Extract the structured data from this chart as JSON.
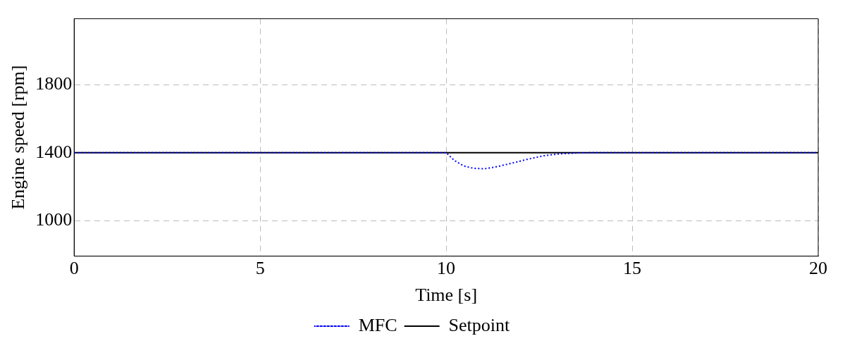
{
  "chart_data": {
    "type": "line",
    "xlabel": "Time [s]",
    "ylabel": "Engine speed [rpm]",
    "xlim": [
      0,
      20
    ],
    "xticks": [
      0,
      5,
      10,
      15,
      20
    ],
    "ylim": [
      790,
      2190
    ],
    "yticks": [
      1000,
      1400,
      1800
    ],
    "grid": true,
    "legend": "bottom",
    "series": [
      {
        "name": "MFC",
        "color": "#0000ff",
        "line_style": "dotted",
        "x": [
          0,
          10,
          10.21,
          10.47,
          10.73,
          11.02,
          11.31,
          11.76,
          12.22,
          12.67,
          13.06,
          13.57,
          14,
          20
        ],
        "values": [
          1400,
          1400,
          1356,
          1322,
          1308,
          1305,
          1315,
          1338,
          1363,
          1384,
          1393,
          1399,
          1400,
          1400
        ]
      },
      {
        "name": "Setpoint",
        "color": "#000000",
        "line_style": "solid",
        "x": [
          0,
          20
        ],
        "values": [
          1400,
          1400
        ]
      }
    ]
  }
}
